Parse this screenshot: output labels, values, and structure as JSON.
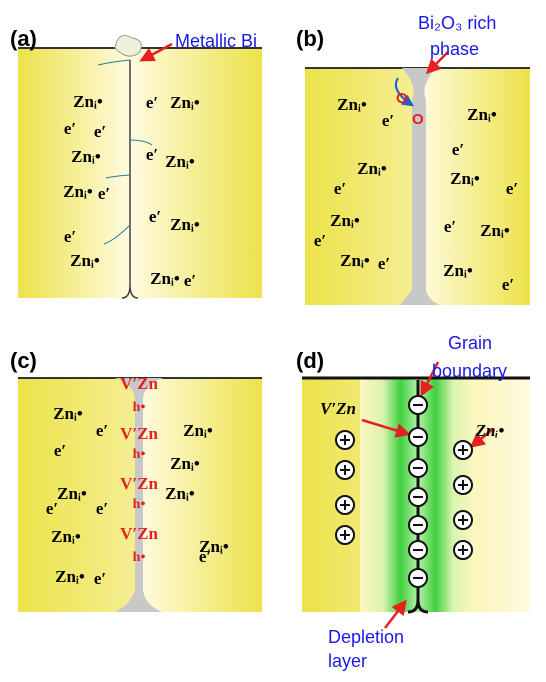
{
  "panels": [
    {
      "label": "(a)",
      "annotation": [
        "Metallic Bi"
      ],
      "species": [
        "Znᵢ•",
        "e′",
        "Znᵢ•",
        "e′",
        "e′",
        "Znᵢ•",
        "e′",
        "Znᵢ•",
        "Znᵢ•",
        "e′",
        "e′",
        "Znᵢ•",
        "e′",
        "Znᵢ•",
        "Znᵢ•",
        "e′"
      ]
    },
    {
      "label": "(b)",
      "annotation": [
        "Bi₂O₃ rich",
        "phase"
      ],
      "markers": [
        "O",
        "O"
      ],
      "species": [
        "Znᵢ•",
        "e′",
        "Znᵢ•",
        "e′",
        "Znᵢ•",
        "Znᵢ•",
        "e′",
        "e′",
        "Znᵢ•",
        "e′",
        "Znᵢ•",
        "e′",
        "Znᵢ•",
        "e′",
        "Znᵢ•",
        "e′"
      ]
    },
    {
      "label": "(c)",
      "defects": [
        "V′Zn",
        "h•",
        "V′Zn",
        "h•",
        "V′Zn",
        "h•",
        "V′Zn",
        "h•"
      ],
      "species": [
        "Znᵢ•",
        "e′",
        "Znᵢ•",
        "e′",
        "Znᵢ•",
        "Znᵢ•",
        "e′",
        "Znᵢ•",
        "e′",
        "Znᵢ•",
        "Znᵢ•",
        "e′",
        "Znᵢ•",
        "e′"
      ]
    },
    {
      "label": "(d)",
      "annotation": [
        "Grain",
        "boundary"
      ],
      "annotation2": [
        "Depletion",
        "layer"
      ],
      "species": [
        "V′Zn",
        "Znᵢ•"
      ]
    }
  ]
}
